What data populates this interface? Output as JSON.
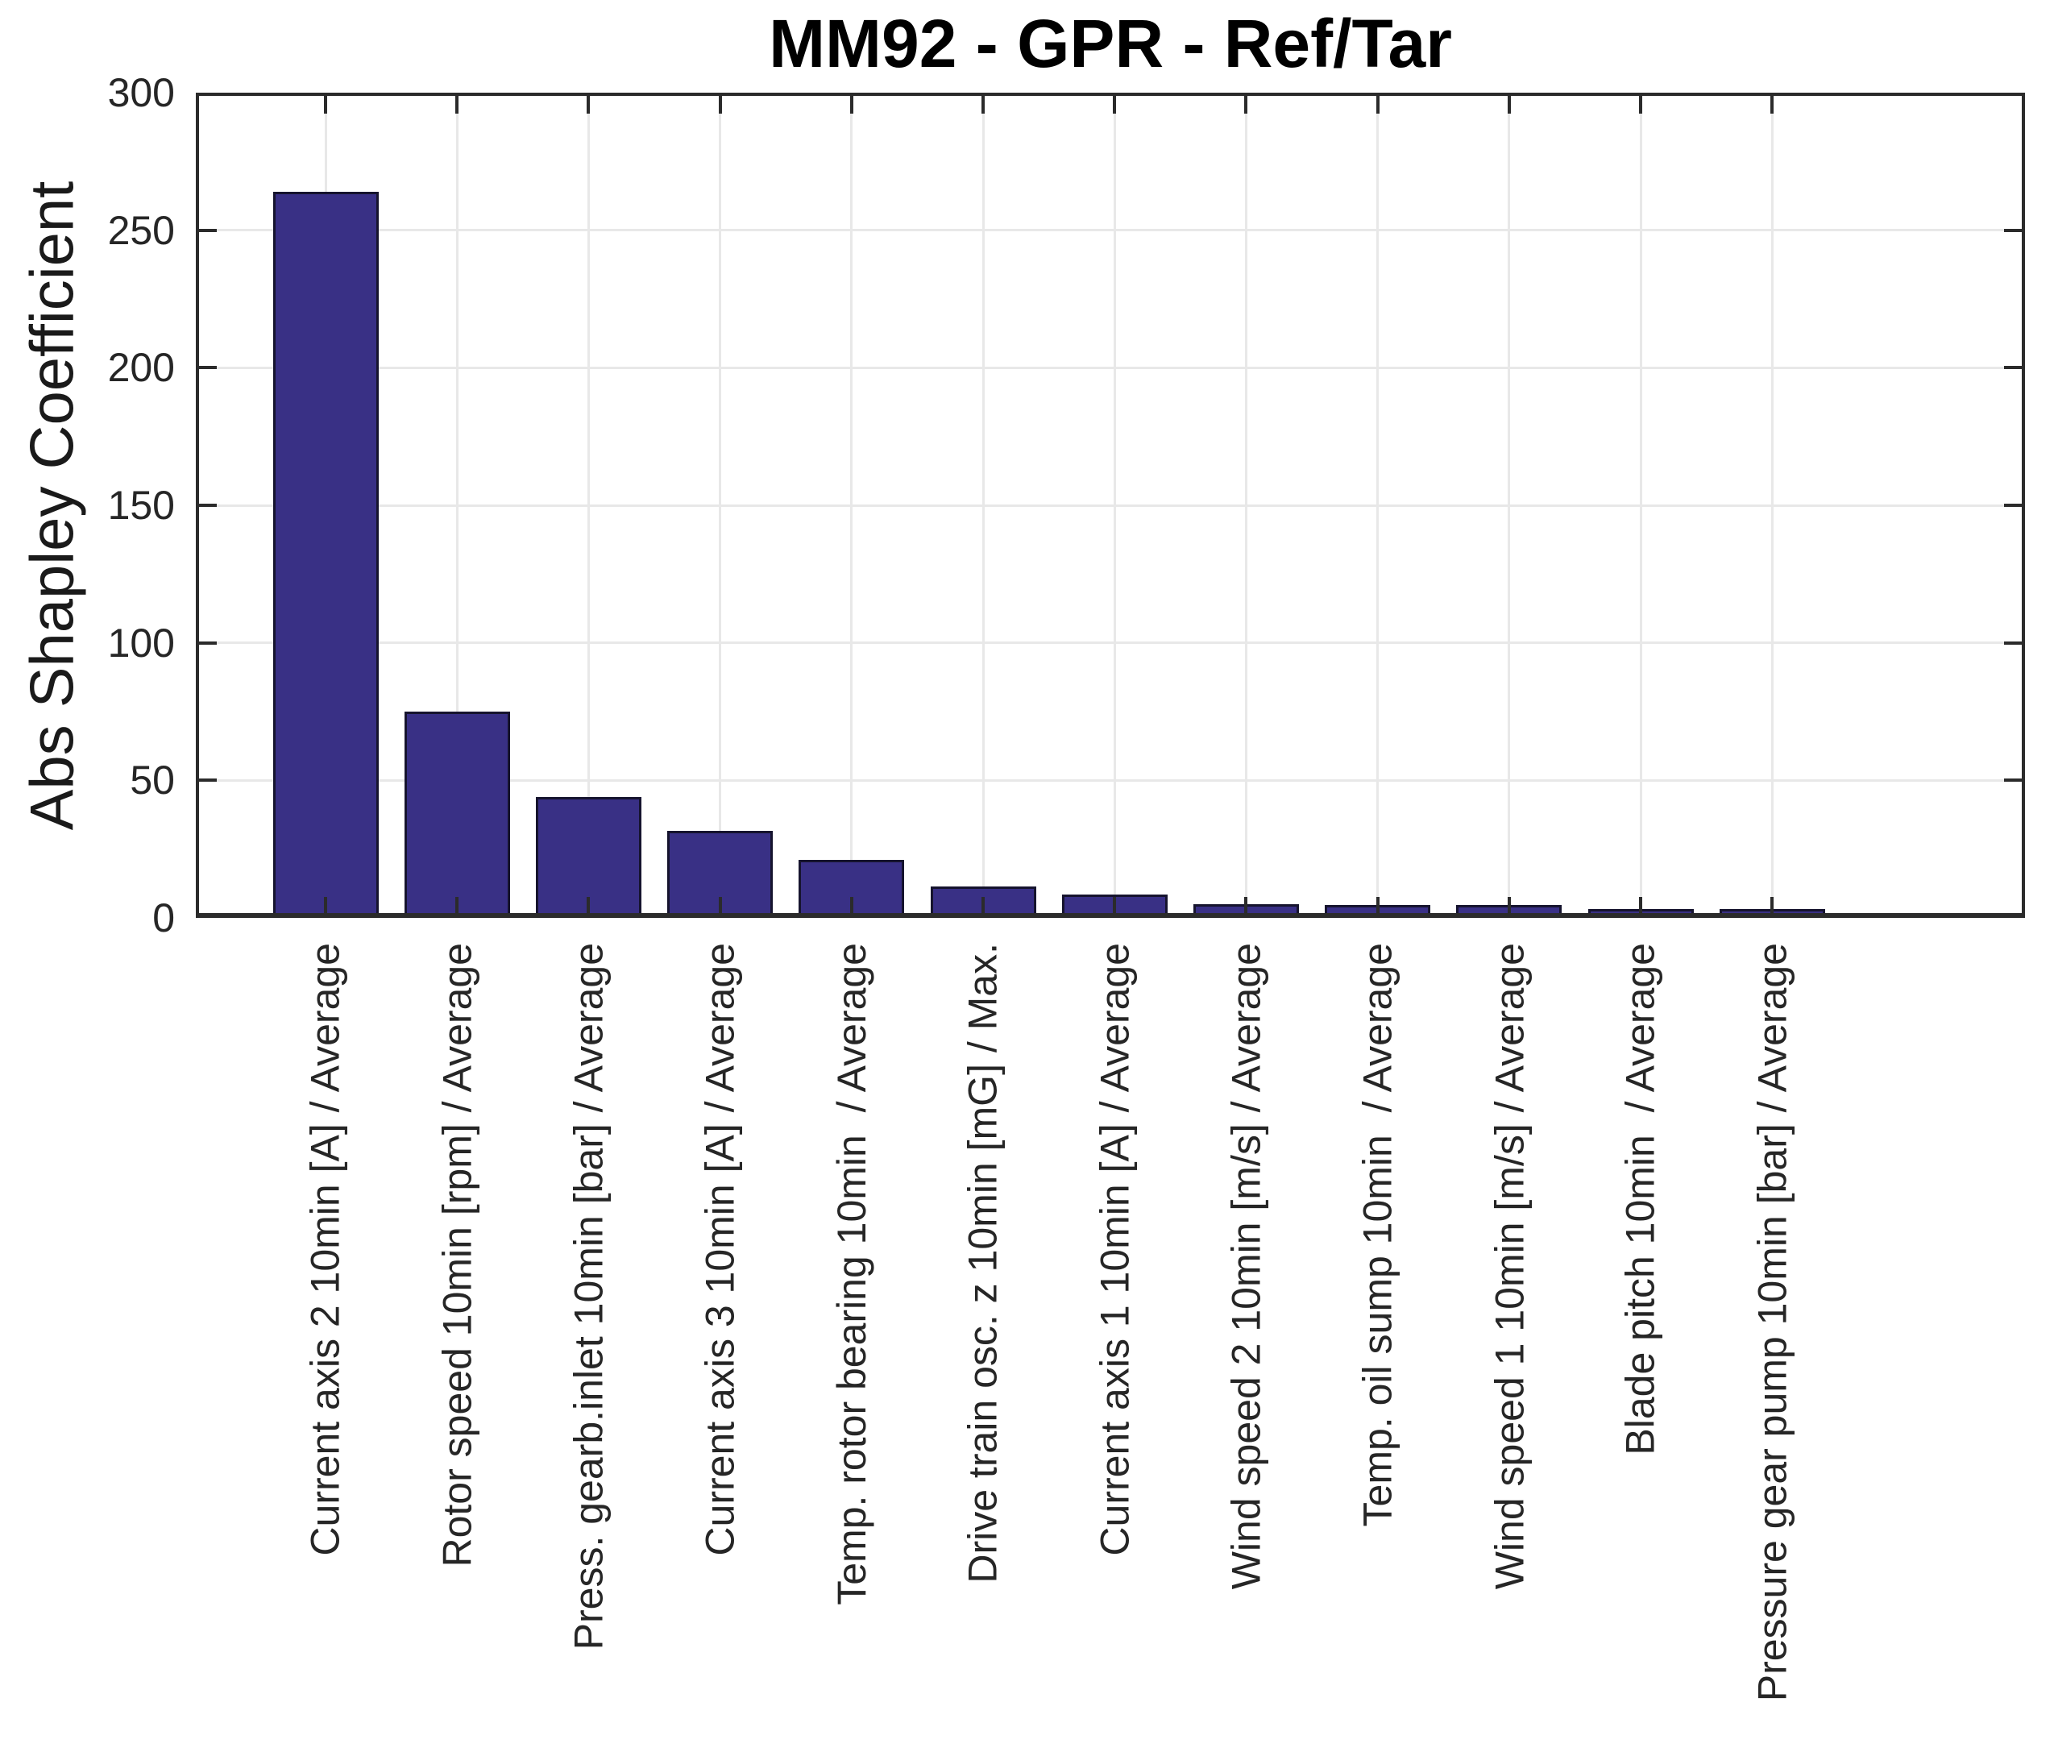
{
  "title": "MM92 - GPR - Ref/Tar",
  "ylabel": "Abs Shapley Coefficient",
  "chart_data": {
    "type": "bar",
    "title": "MM92 - GPR - Ref/Tar",
    "xlabel": "",
    "ylabel": "Abs Shapley Coefficient",
    "categories": [
      "Current axis 2 10min [A] / Average",
      "Rotor speed 10min [rpm] / Average",
      "Press. gearb.inlet 10min [bar] / Average",
      "Current axis 3 10min [A] / Average",
      "Temp. rotor bearing 10min  / Average",
      "Drive train osc. z 10min [mG] / Max.",
      "Current axis 1 10min [A] / Average",
      "Wind speed 2 10min [m/s] / Average",
      "Temp. oil sump 10min  / Average",
      "Wind speed 1 10min [m/s] / Average",
      "Blade pitch 10min  / Average",
      "Pressure gear pump 10min [bar] / Average"
    ],
    "values": [
      264,
      75,
      44,
      31.5,
      21,
      11.5,
      8.5,
      4.9,
      4.8,
      4.7,
      3.3,
      3.2
    ],
    "ylim": [
      0,
      300
    ],
    "yticks": [
      0,
      50,
      100,
      150,
      200,
      250,
      300
    ],
    "grid": "on",
    "legend": "none",
    "bar_color": "#393085",
    "bar_edge_color": "#16142e",
    "axis_color": "#2b2b2b",
    "grid_color": "#e8e8e8",
    "background_color": "#ffffff"
  }
}
